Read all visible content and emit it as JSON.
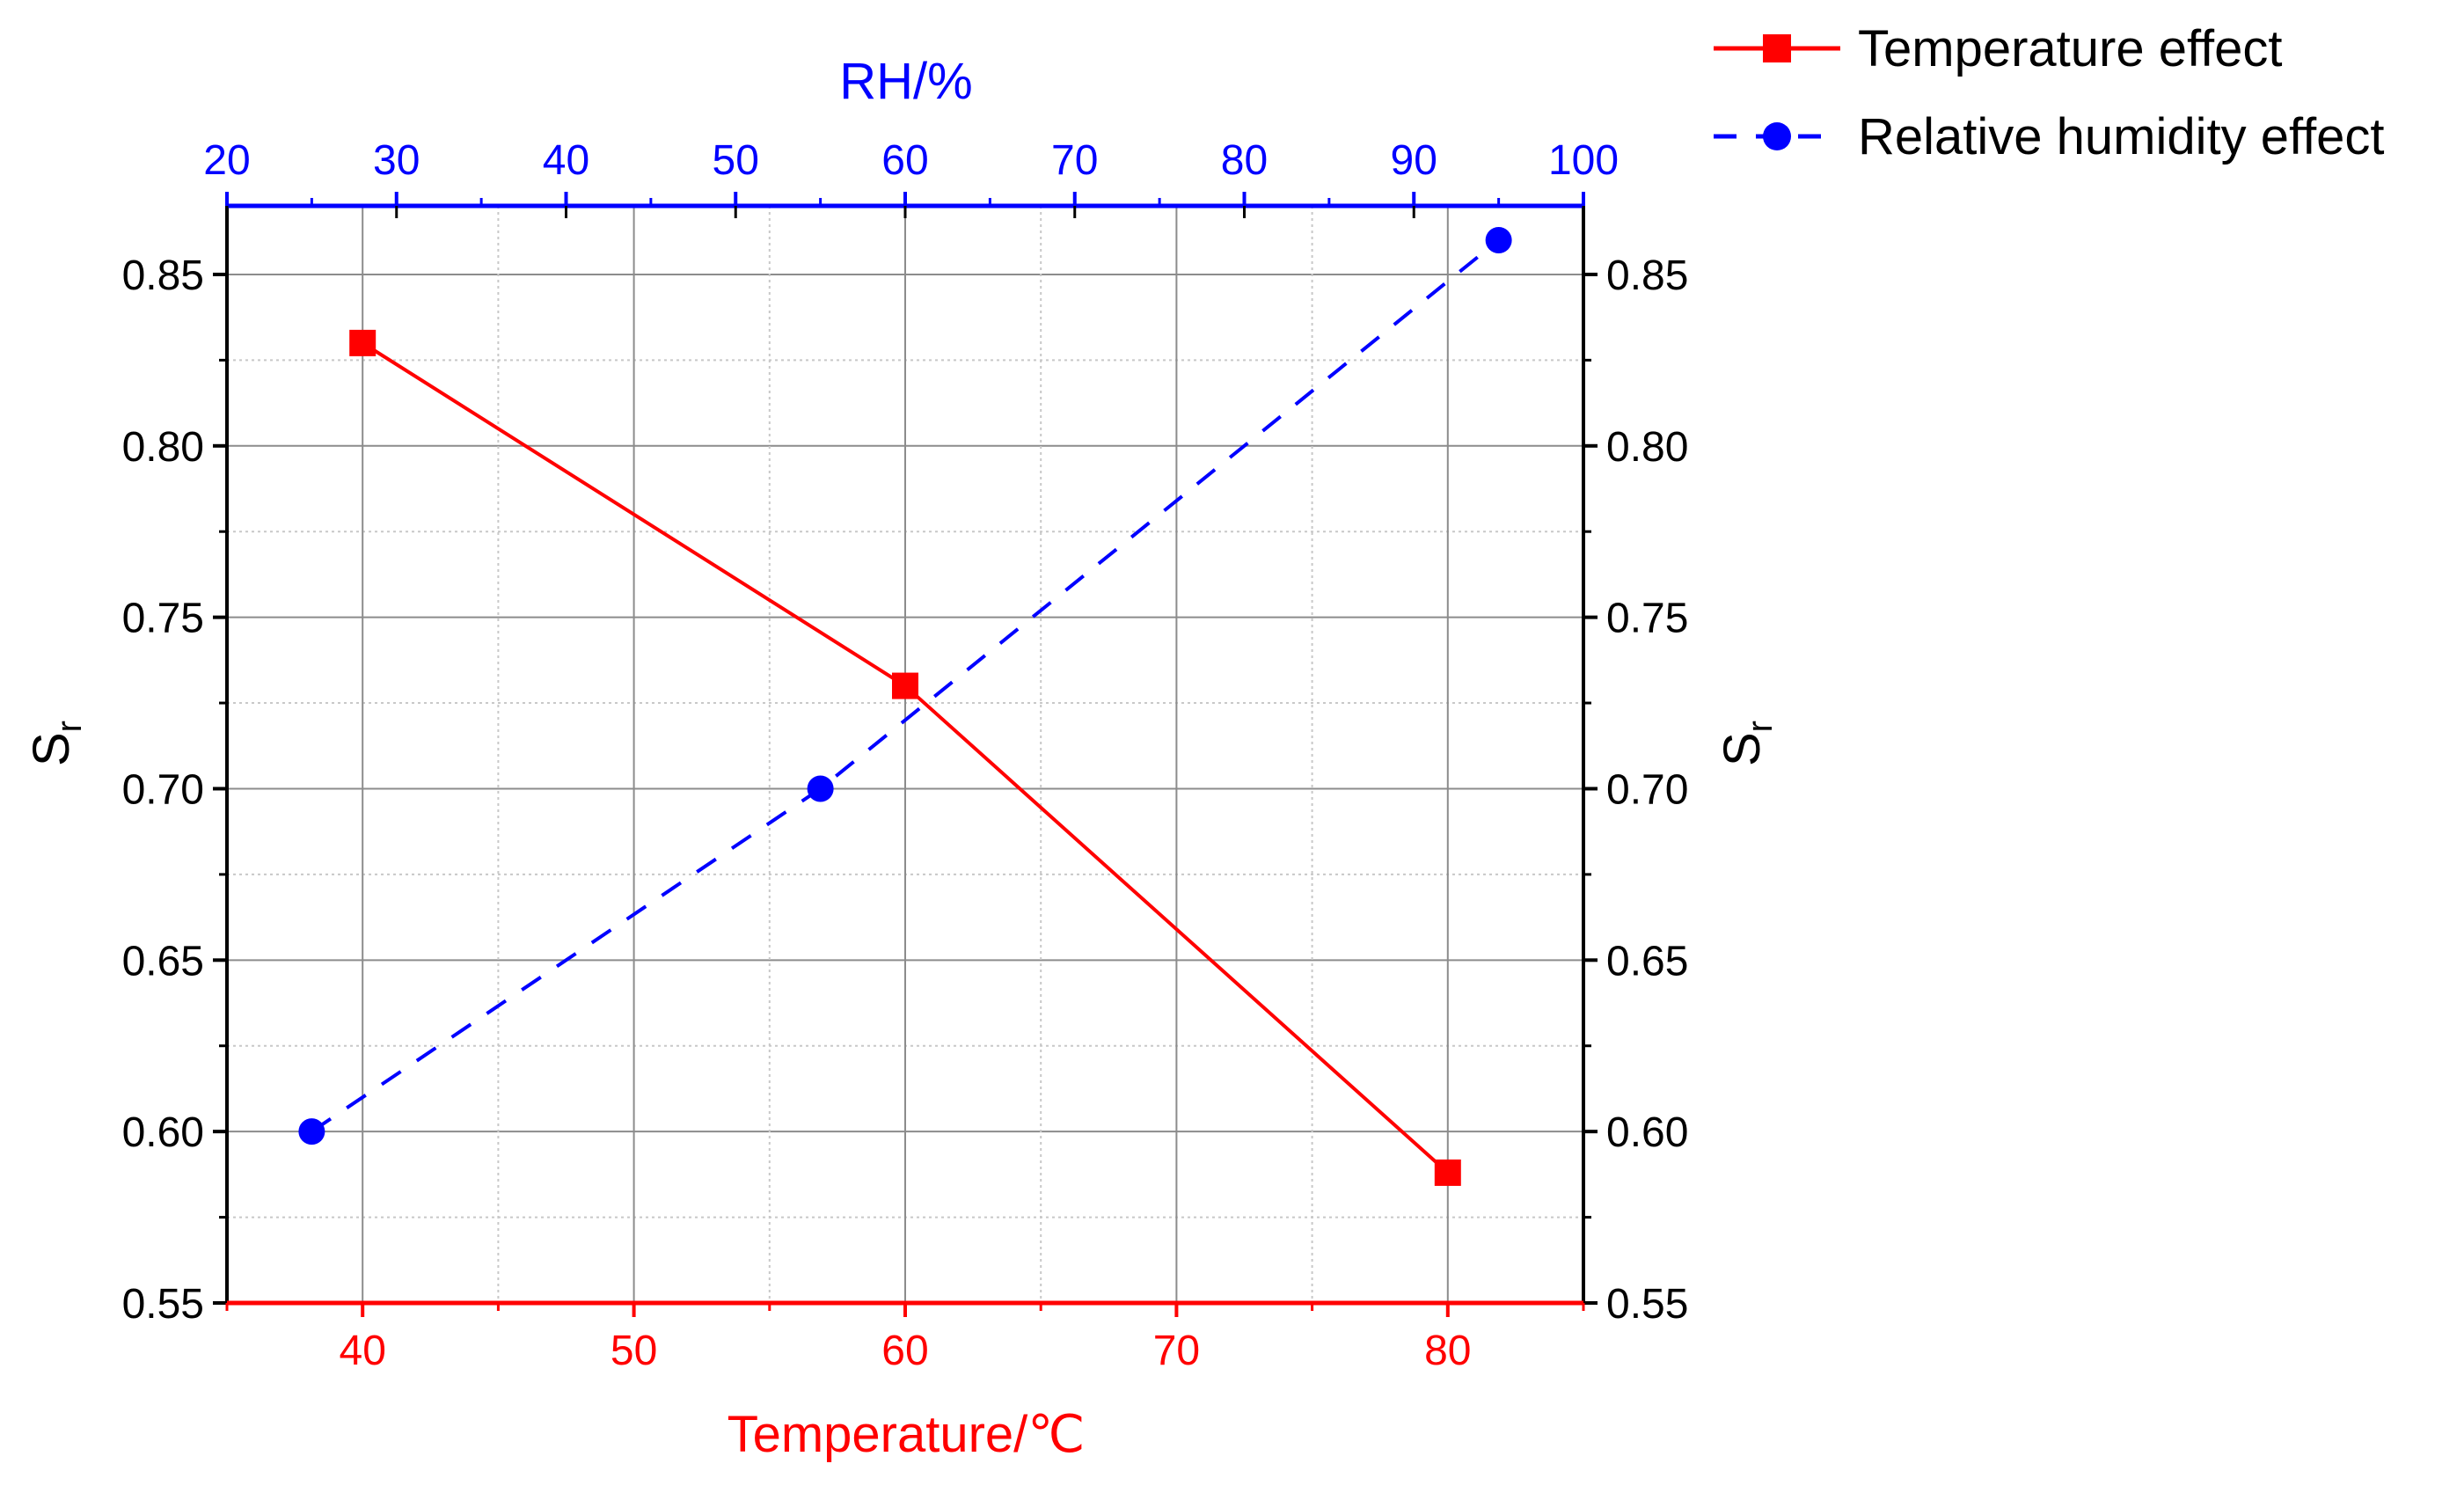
{
  "chart_data": {
    "type": "line",
    "ylabel": "S",
    "ylabel_sub": "r",
    "y_right_label": "S",
    "y_right_label_sub": "r",
    "ylim": [
      0.55,
      0.87
    ],
    "y_ticks": [
      0.55,
      0.6,
      0.65,
      0.7,
      0.75,
      0.8,
      0.85
    ],
    "y_tick_labels": [
      "0.55",
      "0.60",
      "0.65",
      "0.70",
      "0.75",
      "0.80",
      "0.85"
    ],
    "x_bottom": {
      "label": "Temperature/℃",
      "range": [
        35,
        85
      ],
      "ticks": [
        40,
        50,
        60,
        70,
        80
      ],
      "tick_labels": [
        "40",
        "50",
        "60",
        "70",
        "80"
      ],
      "color": "#ff0000"
    },
    "x_top": {
      "label": "RH/%",
      "range": [
        20,
        100
      ],
      "ticks": [
        20,
        30,
        40,
        50,
        60,
        70,
        80,
        90,
        100
      ],
      "tick_labels": [
        "20",
        "30",
        "40",
        "50",
        "60",
        "70",
        "80",
        "90",
        "100"
      ],
      "color": "#0000ff"
    },
    "grid": true,
    "legend_position": "top-right, outside plot",
    "series": [
      {
        "name": "Temperature effect",
        "axis": "bottom",
        "x": [
          40,
          60,
          80
        ],
        "y": [
          0.83,
          0.73,
          0.588
        ],
        "color": "#ff0000",
        "line": "solid",
        "marker": "square"
      },
      {
        "name": "Relative humidity effect",
        "axis": "top",
        "x": [
          25,
          55,
          95
        ],
        "y": [
          0.6,
          0.7,
          0.86
        ],
        "color": "#0000ff",
        "line": "dashed",
        "marker": "circle"
      }
    ]
  }
}
